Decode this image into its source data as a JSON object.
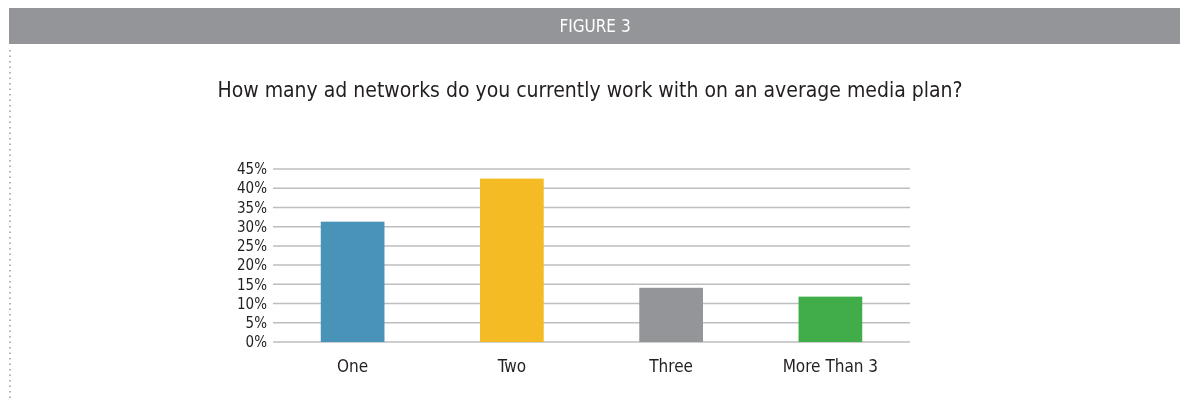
{
  "chart_data": {
    "type": "bar",
    "title": "How many ad networks do you currently work with on an average media plan?",
    "annotations": [
      "FIGURE 3"
    ],
    "categories": [
      "One",
      "Two",
      "Three",
      "More Than 3"
    ],
    "values": [
      31.3,
      42.5,
      14.1,
      11.8
    ],
    "colors": [
      "#4a93b8",
      "#f5bb25",
      "#939598",
      "#40ad49"
    ],
    "ylim": [
      0,
      45
    ],
    "yticks": [
      {
        "value": 0,
        "label": "0%"
      },
      {
        "value": 5,
        "label": "5%"
      },
      {
        "value": 10,
        "label": "10%"
      },
      {
        "value": 15,
        "label": "15%"
      },
      {
        "value": 20,
        "label": "20%"
      },
      {
        "value": 25,
        "label": "25%"
      },
      {
        "value": 30,
        "label": "30%"
      },
      {
        "value": 35,
        "label": "35%"
      },
      {
        "value": 40,
        "label": "40%"
      },
      {
        "value": 45,
        "label": "45%"
      }
    ],
    "grid": "y"
  }
}
